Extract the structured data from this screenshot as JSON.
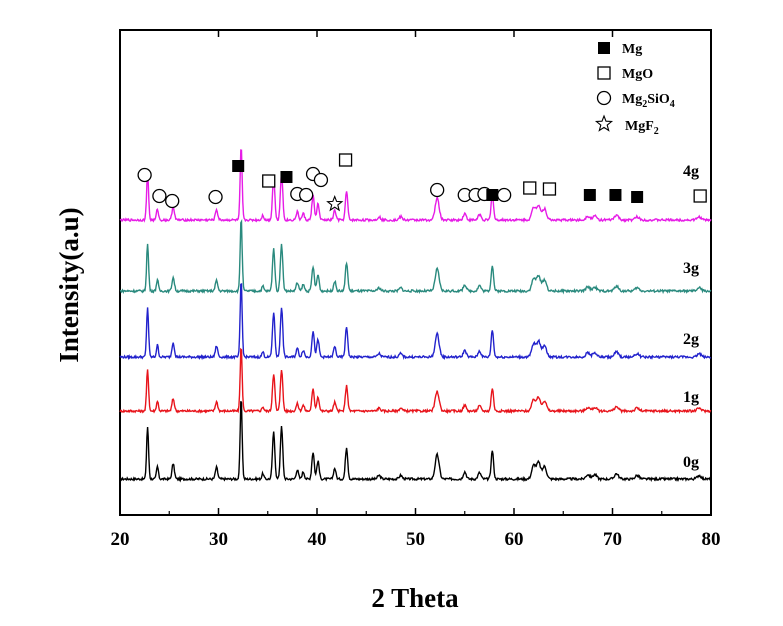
{
  "chart_data": {
    "type": "line",
    "xlabel": "2 Theta",
    "ylabel": "Intensity(a.u)",
    "xlim": [
      20,
      80
    ],
    "xticks": [
      20,
      30,
      40,
      50,
      60,
      70,
      80
    ],
    "yticks": "none",
    "grid": false,
    "legend_position": "top-right",
    "legend": [
      {
        "label": "Mg",
        "marker": "filled-square"
      },
      {
        "label": "MgO",
        "marker": "open-square"
      },
      {
        "label": "Mg2SiO4",
        "label_main": "Mg",
        "label_sub1": "2",
        "label_mid": "SiO",
        "label_sub2": "4",
        "marker": "open-circle"
      },
      {
        "label": "MgF2",
        "label_main": "MgF",
        "label_sub1": "2",
        "marker": "open-star"
      }
    ],
    "series": [
      {
        "name": "0g",
        "color": "#000000",
        "baseline": 0,
        "scale": 1.0
      },
      {
        "name": "1g",
        "color": "#e8141b",
        "baseline": 1,
        "scale": 0.8
      },
      {
        "name": "2g",
        "color": "#2222cc",
        "baseline": 2,
        "scale": 0.95
      },
      {
        "name": "3g",
        "color": "#2a8a7e",
        "baseline": 3,
        "scale": 0.9
      },
      {
        "name": "4g",
        "color": "#e61ce6",
        "baseline": 4,
        "scale": 0.9
      }
    ],
    "peaks": [
      {
        "x": 22.8,
        "h": 0.58,
        "w": 0.1
      },
      {
        "x": 23.8,
        "h": 0.14,
        "w": 0.1
      },
      {
        "x": 25.4,
        "h": 0.17,
        "w": 0.12
      },
      {
        "x": 29.8,
        "h": 0.13,
        "w": 0.12
      },
      {
        "x": 32.3,
        "h": 0.9,
        "w": 0.1
      },
      {
        "x": 34.5,
        "h": 0.06,
        "w": 0.1
      },
      {
        "x": 35.6,
        "h": 0.52,
        "w": 0.12
      },
      {
        "x": 36.4,
        "h": 0.58,
        "w": 0.12
      },
      {
        "x": 38.0,
        "h": 0.1,
        "w": 0.12
      },
      {
        "x": 38.6,
        "h": 0.08,
        "w": 0.12
      },
      {
        "x": 39.6,
        "h": 0.3,
        "w": 0.12
      },
      {
        "x": 40.1,
        "h": 0.2,
        "w": 0.12
      },
      {
        "x": 41.8,
        "h": 0.12,
        "w": 0.12
      },
      {
        "x": 43.0,
        "h": 0.35,
        "w": 0.12
      },
      {
        "x": 46.3,
        "h": 0.04,
        "w": 0.15
      },
      {
        "x": 48.5,
        "h": 0.04,
        "w": 0.15
      },
      {
        "x": 52.2,
        "h": 0.27,
        "w": 0.2
      },
      {
        "x": 55.0,
        "h": 0.08,
        "w": 0.15
      },
      {
        "x": 56.5,
        "h": 0.07,
        "w": 0.15
      },
      {
        "x": 57.8,
        "h": 0.32,
        "w": 0.12
      },
      {
        "x": 62.0,
        "h": 0.15,
        "w": 0.2
      },
      {
        "x": 62.5,
        "h": 0.18,
        "w": 0.2
      },
      {
        "x": 63.1,
        "h": 0.14,
        "w": 0.2
      },
      {
        "x": 67.5,
        "h": 0.05,
        "w": 0.2
      },
      {
        "x": 68.2,
        "h": 0.05,
        "w": 0.2
      },
      {
        "x": 70.4,
        "h": 0.06,
        "w": 0.2
      },
      {
        "x": 72.5,
        "h": 0.04,
        "w": 0.2
      },
      {
        "x": 78.8,
        "h": 0.04,
        "w": 0.2
      }
    ],
    "phase_markers": [
      {
        "phase": "Mg2SiO4",
        "marker": "open-circle",
        "x": 22.5
      },
      {
        "phase": "Mg2SiO4",
        "marker": "open-circle",
        "x": 24.0
      },
      {
        "phase": "Mg2SiO4",
        "marker": "open-circle",
        "x": 25.3
      },
      {
        "phase": "Mg2SiO4",
        "marker": "open-circle",
        "x": 29.7
      },
      {
        "phase": "Mg",
        "marker": "filled-square",
        "x": 32.0
      },
      {
        "phase": "MgO",
        "marker": "open-square",
        "x": 35.1
      },
      {
        "phase": "Mg",
        "marker": "filled-square",
        "x": 36.9
      },
      {
        "phase": "Mg2SiO4",
        "marker": "open-circle",
        "x": 38.0
      },
      {
        "phase": "Mg2SiO4",
        "marker": "open-circle",
        "x": 38.9
      },
      {
        "phase": "Mg2SiO4",
        "marker": "open-circle",
        "x": 39.6
      },
      {
        "phase": "Mg2SiO4",
        "marker": "open-circle",
        "x": 40.4
      },
      {
        "phase": "MgF2",
        "marker": "open-star",
        "x": 41.8
      },
      {
        "phase": "MgO",
        "marker": "open-square",
        "x": 42.9
      },
      {
        "phase": "Mg2SiO4",
        "marker": "open-circle",
        "x": 52.2
      },
      {
        "phase": "Mg2SiO4",
        "marker": "open-circle",
        "x": 55.0
      },
      {
        "phase": "Mg2SiO4",
        "marker": "open-circle",
        "x": 56.1
      },
      {
        "phase": "Mg2SiO4",
        "marker": "open-circle",
        "x": 57.0
      },
      {
        "phase": "Mg",
        "marker": "filled-square",
        "x": 57.8
      },
      {
        "phase": "Mg2SiO4",
        "marker": "open-circle",
        "x": 59.0
      },
      {
        "phase": "MgO",
        "marker": "open-square",
        "x": 61.6
      },
      {
        "phase": "MgO",
        "marker": "open-square",
        "x": 63.6
      },
      {
        "phase": "Mg",
        "marker": "filled-square",
        "x": 67.7
      },
      {
        "phase": "Mg",
        "marker": "filled-square",
        "x": 70.3
      },
      {
        "phase": "Mg",
        "marker": "filled-square",
        "x": 72.5
      },
      {
        "phase": "MgO",
        "marker": "open-square",
        "x": 78.9
      }
    ]
  }
}
